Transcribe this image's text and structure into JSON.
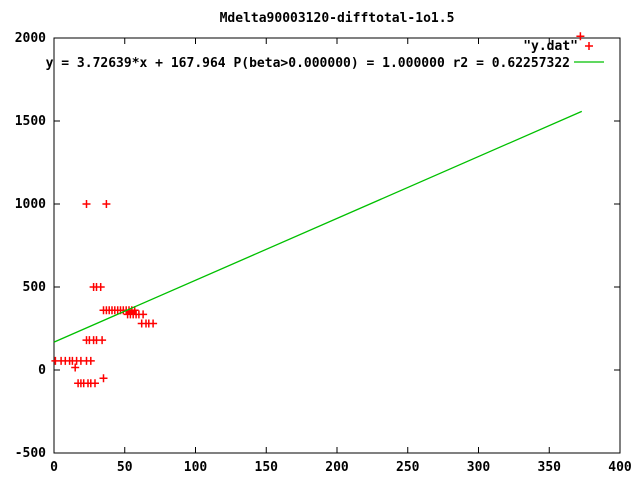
{
  "chart_data": {
    "type": "scatter",
    "title": "Mdelta90003120-difftotal-1o1.5",
    "xlabel": "",
    "ylabel": "",
    "xlim": [
      0,
      400
    ],
    "ylim": [
      -500,
      2000
    ],
    "xticks": [
      0,
      50,
      100,
      150,
      200,
      250,
      300,
      350,
      400
    ],
    "yticks": [
      -500,
      0,
      500,
      1000,
      1500,
      2000
    ],
    "grid": false,
    "legend_position": "top-right",
    "colors": {
      "foreground": "#000000",
      "background": "#ffffff",
      "points": "#ff0000",
      "fit_line": "#00c000"
    },
    "series": [
      {
        "name": "\"y.dat\"",
        "type": "points",
        "marker": "plus",
        "color": "#ff0000",
        "points": [
          [
            35,
            360
          ],
          [
            37,
            360
          ],
          [
            39,
            360
          ],
          [
            41,
            360
          ],
          [
            43,
            360
          ],
          [
            45,
            360
          ],
          [
            47,
            360
          ],
          [
            49,
            360
          ],
          [
            51,
            360
          ],
          [
            53,
            360
          ],
          [
            55,
            360
          ],
          [
            57,
            360
          ],
          [
            52,
            335
          ],
          [
            54,
            335
          ],
          [
            56,
            335
          ],
          [
            58,
            335
          ],
          [
            60,
            335
          ],
          [
            63,
            335
          ],
          [
            62,
            280
          ],
          [
            65,
            280
          ],
          [
            67,
            280
          ],
          [
            70,
            280
          ],
          [
            23,
            180
          ],
          [
            25,
            180
          ],
          [
            28,
            180
          ],
          [
            30,
            180
          ],
          [
            34,
            180
          ],
          [
            28,
            500
          ],
          [
            30,
            500
          ],
          [
            33,
            500
          ],
          [
            23,
            1000
          ],
          [
            37,
            1000
          ],
          [
            1,
            55
          ],
          [
            5,
            55
          ],
          [
            8,
            55
          ],
          [
            11,
            55
          ],
          [
            13,
            55
          ],
          [
            16,
            55
          ],
          [
            19,
            55
          ],
          [
            23,
            55
          ],
          [
            26,
            55
          ],
          [
            15,
            15
          ],
          [
            17,
            -80
          ],
          [
            19,
            -80
          ],
          [
            21,
            -80
          ],
          [
            24,
            -80
          ],
          [
            26,
            -80
          ],
          [
            29,
            -80
          ],
          [
            35,
            -50
          ],
          [
            372,
            2010
          ]
        ]
      },
      {
        "name": "y = 3.72639*x + 167.964 P(beta>0.000000) = 1.000000 r2 = 0.62257322",
        "type": "line",
        "color": "#00c000",
        "fit": {
          "slope": 3.72639,
          "intercept": 167.964,
          "x_start": 0,
          "x_end": 373
        }
      }
    ]
  }
}
